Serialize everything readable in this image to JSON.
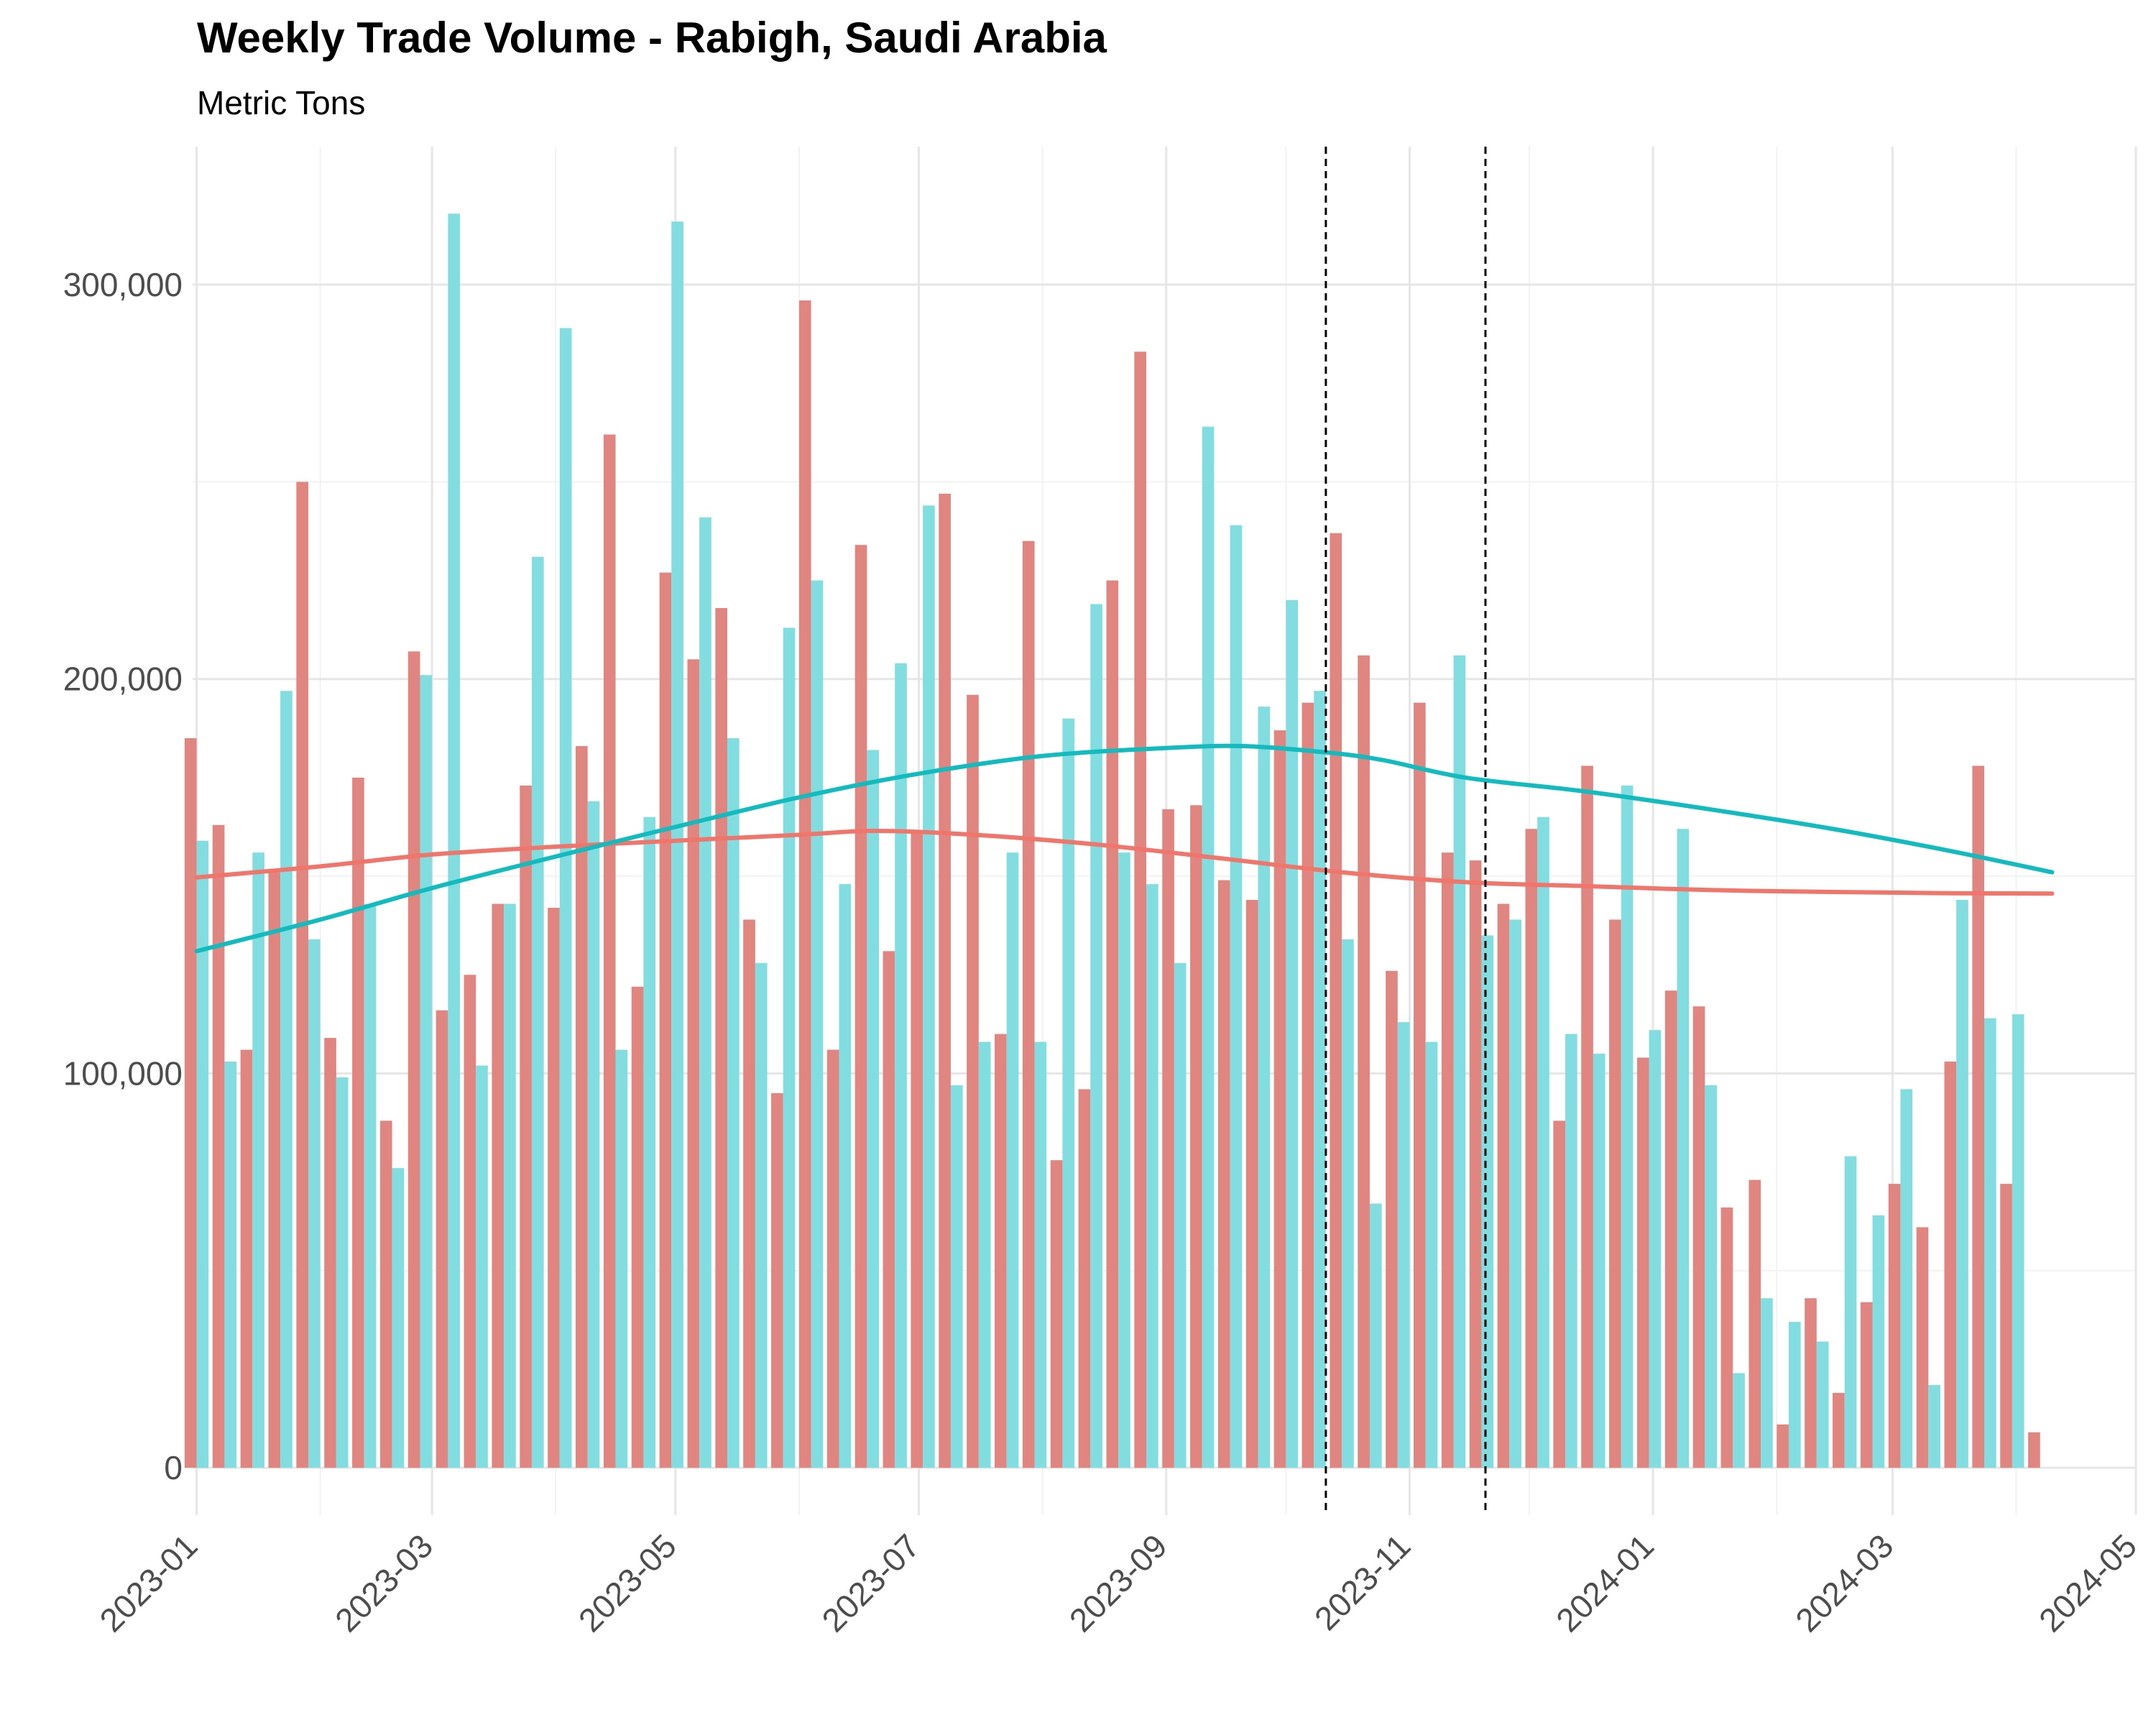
{
  "chart_data": {
    "type": "bar",
    "title": "Weekly Trade Volume - Rabigh, Saudi Arabia",
    "subtitle": "Metric Tons",
    "xlabel": "",
    "ylabel": "",
    "x_axis": {
      "type": "date",
      "range": [
        "2022-12-31",
        "2024-05-01"
      ],
      "tick_labels": [
        "2023-01",
        "2023-03",
        "2023-05",
        "2023-07",
        "2023-09",
        "2023-11",
        "2024-01",
        "2024-03",
        "2024-05"
      ],
      "tick_dates": [
        "2023-01-01",
        "2023-03-01",
        "2023-05-01",
        "2023-07-01",
        "2023-09-01",
        "2023-11-01",
        "2024-01-01",
        "2024-03-01",
        "2024-05-01"
      ]
    },
    "y_axis": {
      "range": [
        -12000,
        335000
      ],
      "tick_labels": [
        "0",
        "100,000",
        "200,000",
        "300,000"
      ],
      "tick_values": [
        0,
        100000,
        200000,
        300000
      ]
    },
    "grid": true,
    "legend": "none",
    "colors": {
      "red": "#e0857f",
      "teal": "#82dde1",
      "red_line": "#f0766c",
      "teal_line": "#12bbbe",
      "vline": "#000000"
    },
    "weeks": [
      "2023-01-01",
      "2023-01-08",
      "2023-01-15",
      "2023-01-22",
      "2023-01-29",
      "2023-02-05",
      "2023-02-12",
      "2023-02-19",
      "2023-02-26",
      "2023-03-05",
      "2023-03-12",
      "2023-03-19",
      "2023-03-26",
      "2023-04-02",
      "2023-04-09",
      "2023-04-16",
      "2023-04-23",
      "2023-04-30",
      "2023-05-07",
      "2023-05-14",
      "2023-05-21",
      "2023-05-28",
      "2023-06-04",
      "2023-06-11",
      "2023-06-18",
      "2023-06-25",
      "2023-07-02",
      "2023-07-09",
      "2023-07-16",
      "2023-07-23",
      "2023-07-30",
      "2023-08-06",
      "2023-08-13",
      "2023-08-20",
      "2023-08-27",
      "2023-09-03",
      "2023-09-10",
      "2023-09-17",
      "2023-09-24",
      "2023-10-01",
      "2023-10-08",
      "2023-10-15",
      "2023-10-22",
      "2023-10-29",
      "2023-11-05",
      "2023-11-12",
      "2023-11-19",
      "2023-11-26",
      "2023-12-03",
      "2023-12-10",
      "2023-12-17",
      "2023-12-24",
      "2023-12-31",
      "2024-01-07",
      "2024-01-14",
      "2024-01-21",
      "2024-01-28",
      "2024-02-04",
      "2024-02-11",
      "2024-02-18",
      "2024-02-25",
      "2024-03-03",
      "2024-03-10",
      "2024-03-17",
      "2024-03-24",
      "2024-03-31",
      "2024-04-07"
    ],
    "series": [
      {
        "color": "red",
        "offset_days": -1.5,
        "values": [
          185000,
          163000,
          106000,
          151000,
          250000,
          109000,
          175000,
          88000,
          207000,
          116000,
          125000,
          143000,
          173000,
          142000,
          183000,
          262000,
          122000,
          227000,
          205000,
          218000,
          139000,
          95000,
          296000,
          106000,
          234000,
          131000,
          161000,
          247000,
          196000,
          110000,
          235000,
          78000,
          96000,
          225000,
          283000,
          167000,
          168000,
          149000,
          144000,
          187000,
          194000,
          237000,
          206000,
          126000,
          194000,
          156000,
          154000,
          143000,
          162000,
          88000,
          178000,
          139000,
          104000,
          121000,
          117000,
          66000,
          73000,
          11000,
          43000,
          19000,
          42000,
          72000,
          61000,
          103000,
          178000,
          72000,
          9000
        ]
      },
      {
        "color": "teal",
        "offset_days": 1.5,
        "values": [
          159000,
          103000,
          156000,
          197000,
          134000,
          99000,
          143000,
          76000,
          201000,
          318000,
          102000,
          143000,
          231000,
          289000,
          169000,
          106000,
          165000,
          316000,
          241000,
          185000,
          128000,
          213000,
          225000,
          148000,
          182000,
          204000,
          244000,
          97000,
          108000,
          156000,
          108000,
          190000,
          219000,
          156000,
          148000,
          128000,
          264000,
          239000,
          193000,
          220000,
          197000,
          134000,
          67000,
          113000,
          108000,
          206000,
          135000,
          139000,
          165000,
          110000,
          105000,
          173000,
          111000,
          162000,
          97000,
          24000,
          43000,
          37000,
          32000,
          79000,
          64000,
          96000,
          21000,
          144000,
          114000,
          115000,
          0
        ]
      }
    ],
    "trend_lines": [
      {
        "color": "red_line",
        "points": [
          [
            "2023-01-01",
            149700
          ],
          [
            "2023-02-01",
            152500
          ],
          [
            "2023-03-01",
            155500
          ],
          [
            "2023-04-01",
            157500
          ],
          [
            "2023-05-01",
            159000
          ],
          [
            "2023-06-01",
            160500
          ],
          [
            "2023-06-20",
            161500
          ],
          [
            "2023-07-15",
            160500
          ],
          [
            "2023-08-15",
            158000
          ],
          [
            "2023-09-15",
            154500
          ],
          [
            "2023-10-15",
            151000
          ],
          [
            "2023-11-15",
            148500
          ],
          [
            "2023-12-15",
            147500
          ],
          [
            "2024-01-15",
            146500
          ],
          [
            "2024-02-15",
            146000
          ],
          [
            "2024-03-15",
            145700
          ],
          [
            "2024-04-10",
            145600
          ]
        ]
      },
      {
        "color": "teal_line",
        "points": [
          [
            "2023-01-01",
            131000
          ],
          [
            "2023-02-01",
            139000
          ],
          [
            "2023-03-01",
            147000
          ],
          [
            "2023-04-01",
            155000
          ],
          [
            "2023-05-01",
            162500
          ],
          [
            "2023-06-01",
            170000
          ],
          [
            "2023-07-01",
            176000
          ],
          [
            "2023-08-01",
            180500
          ],
          [
            "2023-09-01",
            182500
          ],
          [
            "2023-09-20",
            183000
          ],
          [
            "2023-10-10",
            181500
          ],
          [
            "2023-10-25",
            179500
          ],
          [
            "2023-11-15",
            175000
          ],
          [
            "2023-12-15",
            171500
          ],
          [
            "2024-01-15",
            167000
          ],
          [
            "2024-02-15",
            162000
          ],
          [
            "2024-03-15",
            156500
          ],
          [
            "2024-04-10",
            151000
          ]
        ]
      }
    ],
    "vertical_lines": [
      "2023-10-11",
      "2023-11-20"
    ]
  }
}
